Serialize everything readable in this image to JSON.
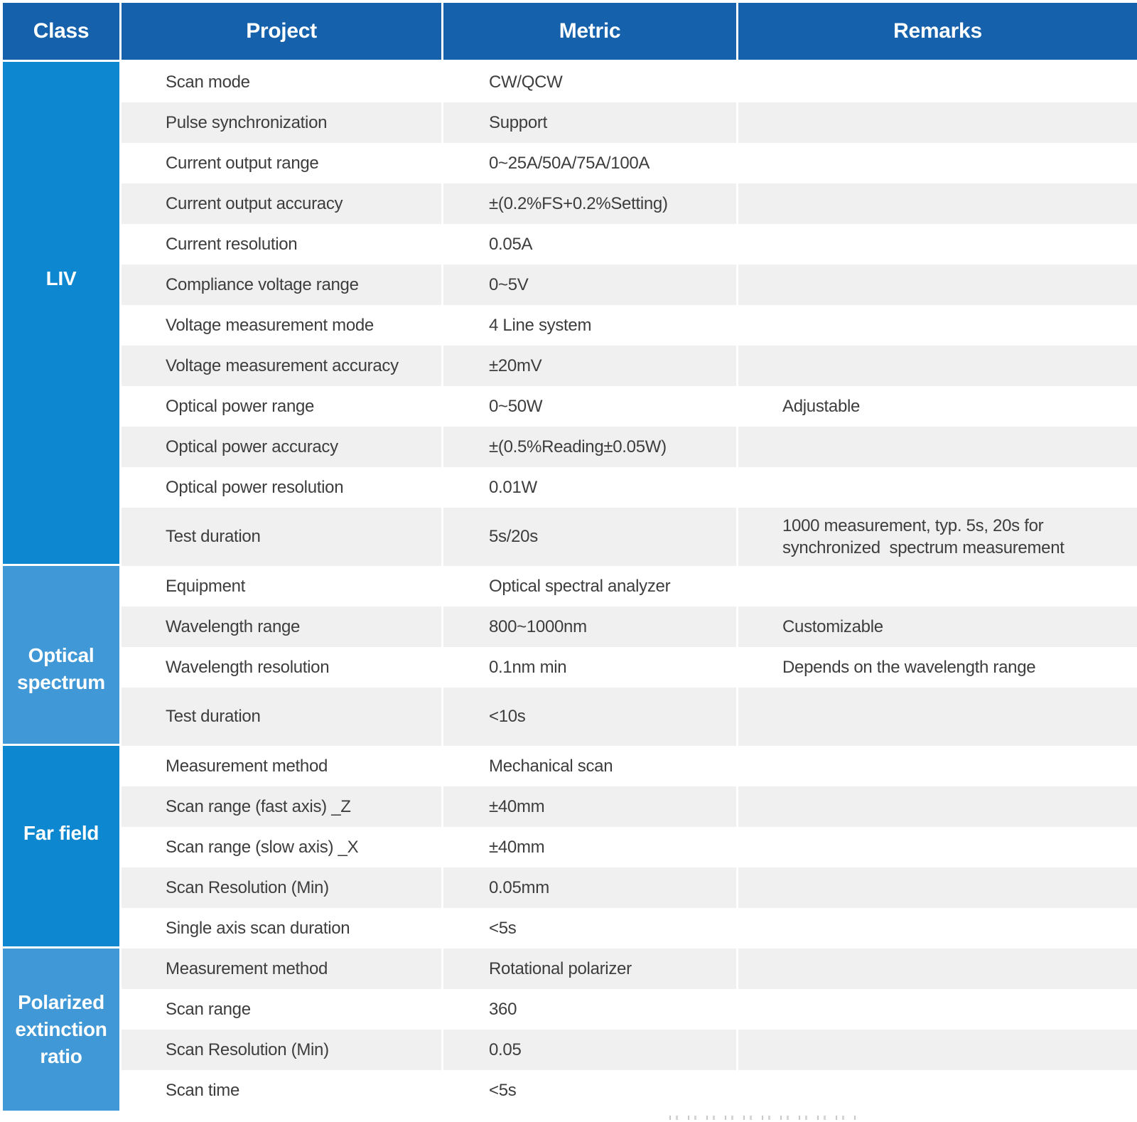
{
  "colors": {
    "header_bg": "#1561ac",
    "class_cell_bright": "#0e87d1",
    "class_cell_light": "#4198d6",
    "row_gray": "#f0f0f0",
    "row_white": "#ffffff",
    "body_text": "#3d3d3d",
    "header_text": "#ffffff"
  },
  "table": {
    "headers": [
      {
        "label": "Class"
      },
      {
        "label": "Project"
      },
      {
        "label": "Metric"
      },
      {
        "label": "Remarks"
      }
    ],
    "sections": [
      {
        "class_label": "LIV",
        "shade": "bright",
        "rows": [
          {
            "project": "Scan mode",
            "metric": "CW/QCW",
            "remark": "",
            "tall": false
          },
          {
            "project": "Pulse synchronization",
            "metric": "Support",
            "remark": "",
            "tall": false
          },
          {
            "project": "Current output range",
            "metric": "0~25A/50A/75A/100A",
            "remark": "",
            "tall": false
          },
          {
            "project": "Current output accuracy",
            "metric": "±(0.2%FS+0.2%Setting)",
            "remark": "",
            "tall": false
          },
          {
            "project": "Current resolution",
            "metric": "0.05A",
            "remark": "",
            "tall": false
          },
          {
            "project": "Compliance voltage range",
            "metric": "0~5V",
            "remark": "",
            "tall": false
          },
          {
            "project": "Voltage measurement mode",
            "metric": "4 Line system",
            "remark": "",
            "tall": false
          },
          {
            "project": "Voltage measurement accuracy",
            "metric": "±20mV",
            "remark": "",
            "tall": false
          },
          {
            "project": "Optical power range",
            "metric": "0~50W",
            "remark": "Adjustable",
            "tall": false
          },
          {
            "project": "Optical power accuracy",
            "metric": "±(0.5%Reading±0.05W)",
            "remark": "",
            "tall": false
          },
          {
            "project": "Optical power resolution",
            "metric": "0.01W",
            "remark": "",
            "tall": false
          },
          {
            "project": "Test duration",
            "metric": "5s/20s",
            "remark": "1000 measurement, typ. 5s, 20s for synchronized  spectrum measurement",
            "tall": true
          }
        ]
      },
      {
        "class_label": "Optical spectrum",
        "shade": "light",
        "rows": [
          {
            "project": "Equipment",
            "metric": "Optical spectral analyzer",
            "remark": "",
            "tall": false
          },
          {
            "project": "Wavelength range",
            "metric": "800~1000nm",
            "remark": "Customizable",
            "tall": false
          },
          {
            "project": "Wavelength resolution",
            "metric": "0.1nm min",
            "remark": "Depends on the wavelength range",
            "tall": false
          },
          {
            "project": "Test duration",
            "metric": "<10s",
            "remark": "",
            "tall": true
          }
        ]
      },
      {
        "class_label": "Far field",
        "shade": "bright",
        "rows": [
          {
            "project": "Measurement method",
            "metric": "Mechanical scan",
            "remark": "",
            "tall": false
          },
          {
            "project": "Scan range (fast axis) _Z",
            "metric": "±40mm",
            "remark": "",
            "tall": false
          },
          {
            "project": "Scan range (slow axis) _X",
            "metric": "±40mm",
            "remark": "",
            "tall": false
          },
          {
            "project": "Scan Resolution (Min)",
            "metric": "0.05mm",
            "remark": "",
            "tall": false
          },
          {
            "project": "Single axis scan duration",
            "metric": "<5s",
            "remark": "",
            "tall": false
          }
        ]
      },
      {
        "class_label": "Polarized extinction ratio",
        "shade": "light",
        "rows": [
          {
            "project": "Measurement method",
            "metric": "Rotational polarizer",
            "remark": "",
            "tall": false
          },
          {
            "project": "Scan range",
            "metric": "360",
            "remark": "",
            "tall": false
          },
          {
            "project": "Scan Resolution (Min)",
            "metric": "0.05",
            "remark": "",
            "tall": false
          },
          {
            "project": "Scan time",
            "metric": "<5s",
            "remark": "",
            "tall": false
          }
        ]
      }
    ]
  }
}
